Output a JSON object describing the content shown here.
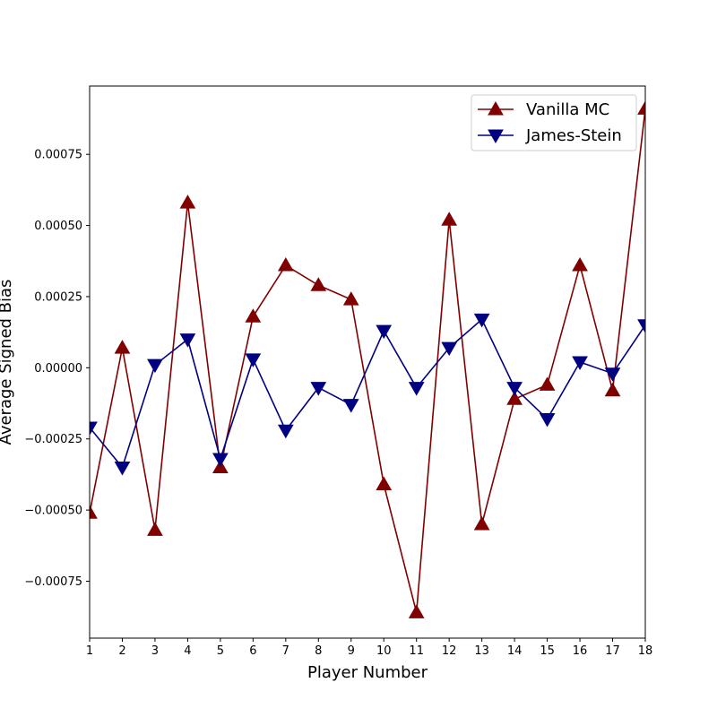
{
  "chart_data": {
    "type": "line",
    "title": "",
    "xlabel": "Player Number",
    "ylabel": "Average Signed Bias",
    "xlim": [
      1,
      18
    ],
    "ylim": [
      -0.00095,
      0.00099
    ],
    "x": [
      1,
      2,
      3,
      4,
      5,
      6,
      7,
      8,
      9,
      10,
      11,
      12,
      13,
      14,
      15,
      16,
      17,
      18
    ],
    "xtick_labels": [
      "1",
      "2",
      "3",
      "4",
      "5",
      "6",
      "7",
      "8",
      "9",
      "10",
      "11",
      "12",
      "13",
      "14",
      "15",
      "16",
      "17",
      "18"
    ],
    "yticks": [
      -0.00075,
      -0.0005,
      -0.00025,
      0.0,
      0.00025,
      0.0005,
      0.00075
    ],
    "ytick_labels": [
      "−0.00075",
      "−0.00050",
      "−0.00025",
      "0.00000",
      "0.00025",
      "0.00050",
      "0.00075"
    ],
    "grid": false,
    "legend_position": "top-right",
    "series": [
      {
        "name": "Vanilla MC",
        "color": "#800000",
        "marker": "triangle-up",
        "values": [
          -0.00051,
          7e-05,
          -0.00057,
          0.00058,
          -0.00035,
          0.00018,
          0.00036,
          0.00029,
          0.00024,
          -0.00041,
          -0.00086,
          0.00052,
          -0.00055,
          -0.00011,
          -6e-05,
          0.00036,
          -8e-05,
          0.00091
        ]
      },
      {
        "name": "James-Stein",
        "color": "#000080",
        "marker": "triangle-down",
        "values": [
          -0.00021,
          -0.00035,
          1e-05,
          0.0001,
          -0.00032,
          3e-05,
          -0.00022,
          -7e-05,
          -0.00013,
          0.00013,
          -7e-05,
          7e-05,
          0.00017,
          -7e-05,
          -0.00018,
          2e-05,
          -2e-05,
          0.00015
        ]
      }
    ]
  }
}
